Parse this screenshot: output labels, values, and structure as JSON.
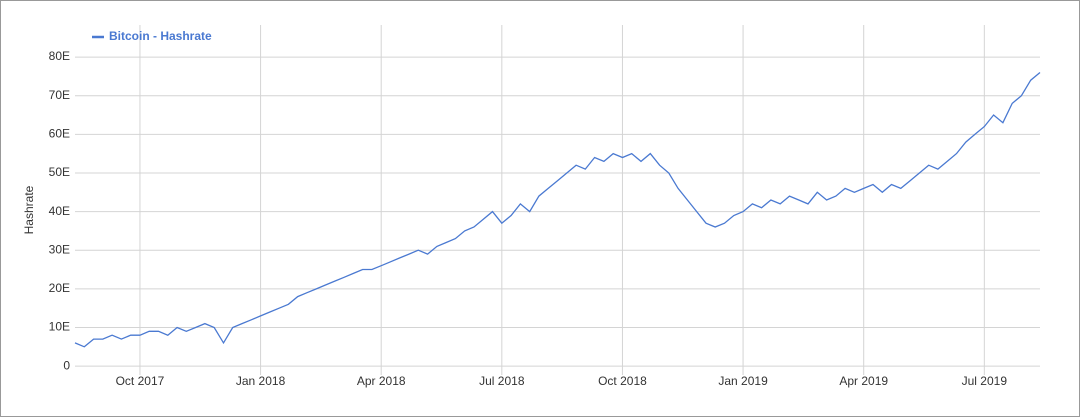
{
  "chart_data": {
    "type": "line",
    "legend": "top-left",
    "y_label": "Hashrate",
    "series": [
      {
        "name": "Bitcoin - Hashrate",
        "color": "#4a79d1",
        "values": [
          6,
          5,
          7,
          7,
          8,
          7,
          8,
          8,
          9,
          9,
          8,
          10,
          9,
          10,
          11,
          10,
          6,
          10,
          11,
          12,
          13,
          14,
          15,
          16,
          18,
          19,
          20,
          21,
          22,
          23,
          24,
          25,
          25,
          26,
          27,
          28,
          29,
          30,
          29,
          31,
          32,
          33,
          35,
          36,
          38,
          40,
          37,
          39,
          42,
          40,
          44,
          46,
          48,
          50,
          52,
          51,
          54,
          53,
          55,
          54,
          55,
          53,
          55,
          52,
          50,
          46,
          43,
          40,
          37,
          36,
          37,
          39,
          40,
          42,
          41,
          43,
          42,
          44,
          43,
          42,
          45,
          43,
          44,
          46,
          45,
          46,
          47,
          45,
          47,
          46,
          48,
          50,
          52,
          51,
          53,
          55,
          58,
          60,
          62,
          65,
          63,
          68,
          70,
          74,
          76
        ]
      }
    ],
    "categories": [
      null,
      null,
      null,
      null,
      null,
      null,
      null,
      "Oct 2017",
      null,
      null,
      null,
      null,
      null,
      null,
      null,
      null,
      null,
      null,
      null,
      null,
      "Jan 2018",
      null,
      null,
      null,
      null,
      null,
      null,
      null,
      null,
      null,
      null,
      null,
      null,
      "Apr 2018",
      null,
      null,
      null,
      null,
      null,
      null,
      null,
      null,
      null,
      null,
      null,
      null,
      "Jul 2018",
      null,
      null,
      null,
      null,
      null,
      null,
      null,
      null,
      null,
      null,
      null,
      null,
      "Oct 2018",
      null,
      null,
      null,
      null,
      null,
      null,
      null,
      null,
      null,
      null,
      null,
      null,
      "Jan 2019",
      null,
      null,
      null,
      null,
      null,
      null,
      null,
      null,
      null,
      null,
      null,
      null,
      "Apr 2019",
      null,
      null,
      null,
      null,
      null,
      null,
      null,
      null,
      null,
      null,
      null,
      null,
      "Jul 2019",
      null,
      null,
      null,
      null,
      null,
      null
    ],
    "ylim": [
      -2.3,
      88.3
    ],
    "yticks": [
      0,
      {
        "value": 10,
        "label": "10E"
      },
      {
        "value": 20,
        "label": "20E"
      },
      {
        "value": 30,
        "label": "30E"
      },
      {
        "value": 40,
        "label": "40E"
      },
      {
        "value": 50,
        "label": "50E"
      },
      {
        "value": 60,
        "label": "60E"
      },
      {
        "value": 70,
        "label": "70E"
      },
      {
        "value": 80,
        "label": "80E"
      }
    ],
    "grid": true
  }
}
